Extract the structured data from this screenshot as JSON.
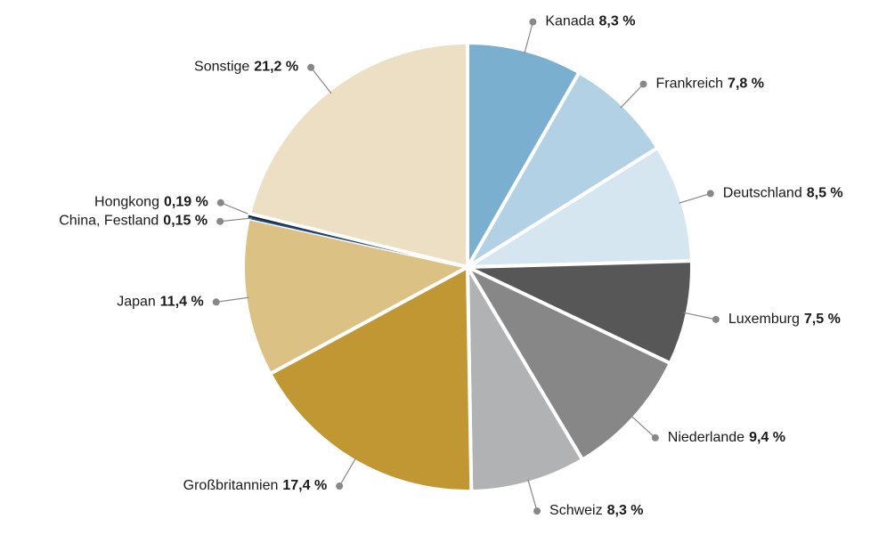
{
  "chart_data": {
    "type": "pie",
    "categories": [
      "Kanada",
      "Frankreich",
      "Deutschland",
      "Luxemburg",
      "Niederlande",
      "Schweiz",
      "Großbritannien",
      "Japan",
      "China, Festland",
      "Hongkong",
      "Sonstige"
    ],
    "values": [
      8.3,
      7.8,
      8.5,
      7.5,
      9.4,
      8.3,
      17.4,
      11.4,
      0.15,
      0.19,
      21.2
    ],
    "value_labels": [
      "8,3 %",
      "7,8 %",
      "8,5 %",
      "7,5 %",
      "9,4 %",
      "8,3 %",
      "17,4 %",
      "11,4 %",
      "0,15 %",
      "0,19 %",
      "21,2 %"
    ],
    "colors": [
      "#7aafcf",
      "#b3d1e4",
      "#d6e6f0",
      "#575757",
      "#878787",
      "#b1b2b4",
      "#c09733",
      "#dbc184",
      "#1f4e8c",
      "#1a1a1a",
      "#ecdfc4"
    ]
  }
}
